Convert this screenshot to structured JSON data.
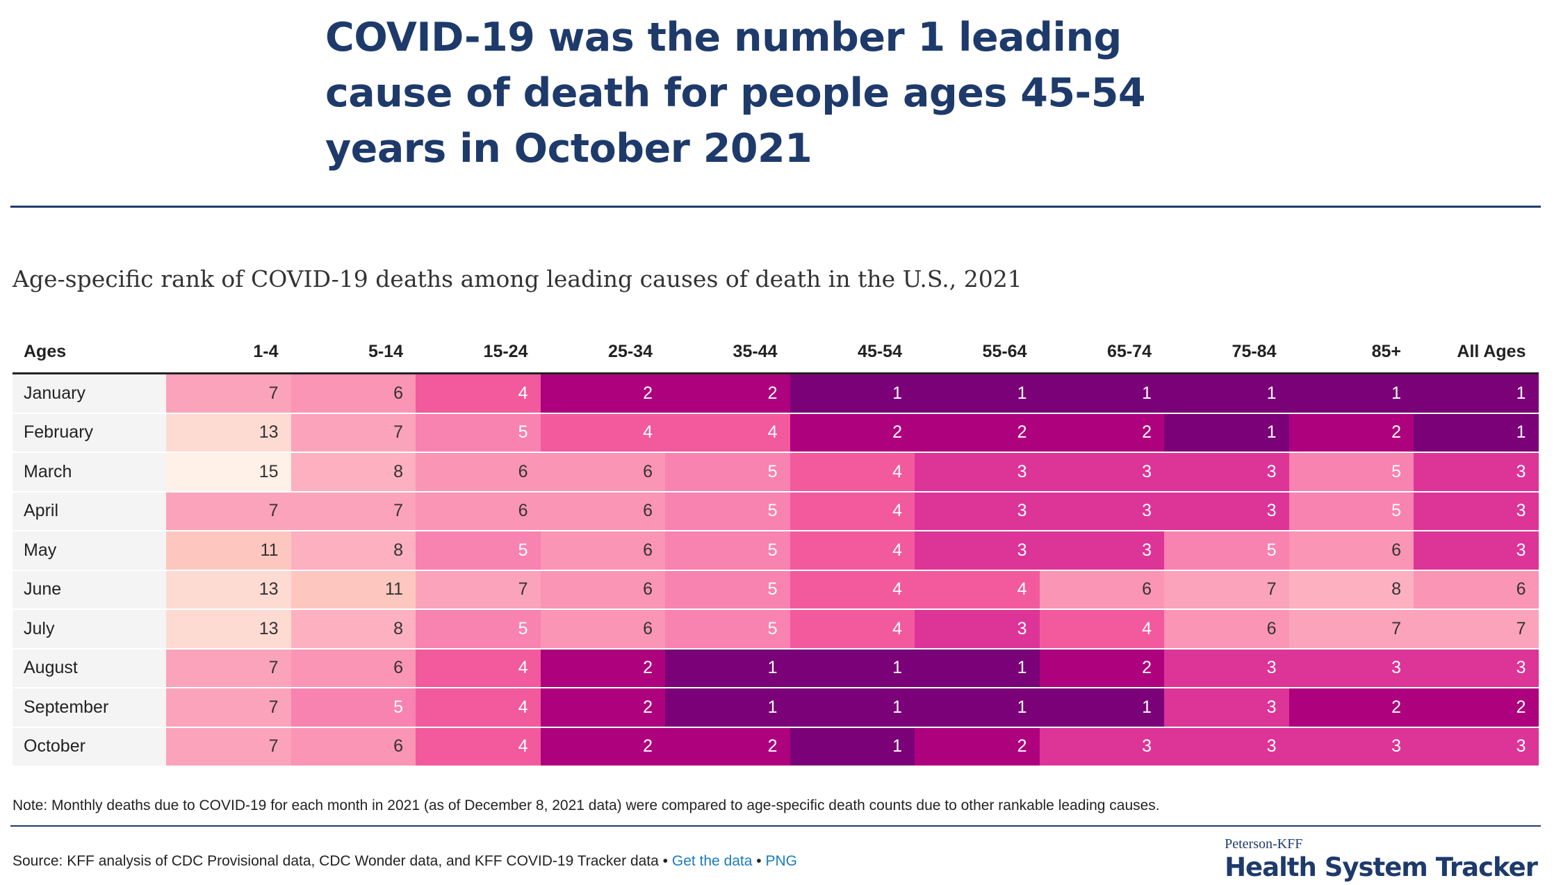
{
  "headline": "COVID-19 was the number 1 leading cause of death for people ages 45-54 years in October 2021",
  "chart_data": {
    "type": "heatmap",
    "title": "Age-specific rank of COVID-19 deaths among leading causes of death in the U.S., 2021",
    "row_header": "Ages",
    "columns": [
      "1-4",
      "5-14",
      "15-24",
      "25-34",
      "35-44",
      "45-54",
      "55-64",
      "65-74",
      "75-84",
      "85+",
      "All Ages"
    ],
    "rows": [
      "January",
      "February",
      "March",
      "April",
      "May",
      "June",
      "July",
      "August",
      "September",
      "October"
    ],
    "values": [
      [
        7,
        6,
        4,
        2,
        2,
        1,
        1,
        1,
        1,
        1,
        1
      ],
      [
        13,
        7,
        5,
        4,
        4,
        2,
        2,
        2,
        1,
        2,
        1
      ],
      [
        15,
        8,
        6,
        6,
        5,
        4,
        3,
        3,
        3,
        5,
        3
      ],
      [
        7,
        7,
        6,
        6,
        5,
        4,
        3,
        3,
        3,
        5,
        3
      ],
      [
        11,
        8,
        5,
        6,
        5,
        4,
        3,
        3,
        5,
        6,
        3
      ],
      [
        13,
        11,
        7,
        6,
        5,
        4,
        4,
        6,
        7,
        8,
        6
      ],
      [
        13,
        8,
        5,
        6,
        5,
        4,
        3,
        4,
        6,
        7,
        7
      ],
      [
        7,
        6,
        4,
        2,
        1,
        1,
        1,
        2,
        3,
        3,
        3
      ],
      [
        7,
        5,
        4,
        2,
        1,
        1,
        1,
        1,
        3,
        2,
        2
      ],
      [
        7,
        6,
        4,
        2,
        2,
        1,
        2,
        3,
        3,
        3,
        3
      ]
    ],
    "colors": {
      "1": "#7a0177",
      "2": "#ae017e",
      "3": "#dd3497",
      "4": "#f25a9d",
      "5": "#f882b0",
      "6": "#fa95b5",
      "7": "#fba3bb",
      "8": "#fcb0c0",
      "11": "#fdc7c0",
      "13": "#fddbd3",
      "15": "#fff0e8"
    },
    "light_text_max_rank": 5
  },
  "note": "Note: Monthly deaths due to COVID-19 for each month in 2021 (as of December 8, 2021 data) were compared to age-specific death counts due to other rankable leading causes.",
  "source": {
    "text": "Source: KFF analysis of CDC Provisional data, CDC Wonder data, and KFF COVID-19 Tracker data",
    "separator": " • ",
    "get_data_label": "Get the data",
    "png_label": "PNG"
  },
  "brand": {
    "small": "Peterson-KFF",
    "big": "Health System Tracker"
  }
}
